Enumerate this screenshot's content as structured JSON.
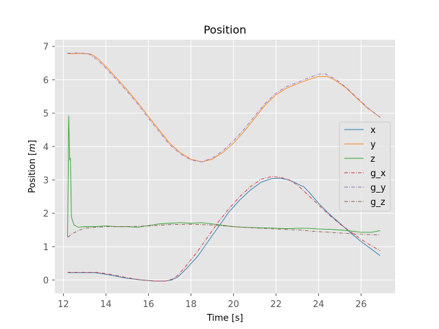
{
  "chart_data": {
    "type": "line",
    "title": "Position",
    "xlabel": "Time [s]",
    "ylabel": "Position [m]",
    "ylabel_prefix": "Position [",
    "ylabel_unit": "m",
    "ylabel_suffix": "]",
    "xlim": [
      11.6,
      27.6
    ],
    "ylim": [
      -0.4,
      7.2
    ],
    "xticks": [
      12,
      14,
      16,
      18,
      20,
      22,
      24,
      26
    ],
    "yticks": [
      0,
      1,
      2,
      3,
      4,
      5,
      6,
      7
    ],
    "grid": true,
    "style": "ggplot",
    "background": "#e5e5e5",
    "legend_position": "right",
    "series": [
      {
        "name": "x",
        "color": "#1f77b4",
        "linestyle": "solid",
        "points": [
          [
            12.2,
            0.22
          ],
          [
            12.8,
            0.22
          ],
          [
            13.5,
            0.22
          ],
          [
            14.2,
            0.15
          ],
          [
            15.0,
            0.05
          ],
          [
            15.7,
            0.0
          ],
          [
            16.3,
            -0.03
          ],
          [
            16.8,
            -0.03
          ],
          [
            17.1,
            0.0
          ],
          [
            17.4,
            0.1
          ],
          [
            17.8,
            0.35
          ],
          [
            18.3,
            0.7
          ],
          [
            18.8,
            1.15
          ],
          [
            19.3,
            1.6
          ],
          [
            19.8,
            2.05
          ],
          [
            20.3,
            2.4
          ],
          [
            20.8,
            2.7
          ],
          [
            21.3,
            2.93
          ],
          [
            21.8,
            3.04
          ],
          [
            22.2,
            3.05
          ],
          [
            22.6,
            3.0
          ],
          [
            22.9,
            2.92
          ],
          [
            23.1,
            2.85
          ],
          [
            23.2,
            2.82
          ],
          [
            23.3,
            2.8
          ],
          [
            23.6,
            2.6
          ],
          [
            24.0,
            2.3
          ],
          [
            24.5,
            1.98
          ],
          [
            25.0,
            1.7
          ],
          [
            25.5,
            1.42
          ],
          [
            26.0,
            1.15
          ],
          [
            26.5,
            0.92
          ],
          [
            26.9,
            0.73
          ]
        ]
      },
      {
        "name": "y",
        "color": "#ff7f0e",
        "linestyle": "solid",
        "points": [
          [
            12.2,
            6.78
          ],
          [
            12.8,
            6.79
          ],
          [
            13.3,
            6.77
          ],
          [
            13.6,
            6.65
          ],
          [
            14.0,
            6.4
          ],
          [
            14.5,
            6.05
          ],
          [
            15.0,
            5.7
          ],
          [
            15.5,
            5.32
          ],
          [
            16.0,
            4.9
          ],
          [
            16.5,
            4.5
          ],
          [
            17.0,
            4.1
          ],
          [
            17.5,
            3.82
          ],
          [
            18.0,
            3.62
          ],
          [
            18.5,
            3.54
          ],
          [
            19.0,
            3.62
          ],
          [
            19.5,
            3.82
          ],
          [
            20.0,
            4.1
          ],
          [
            20.5,
            4.45
          ],
          [
            21.0,
            4.85
          ],
          [
            21.5,
            5.25
          ],
          [
            22.0,
            5.55
          ],
          [
            22.5,
            5.75
          ],
          [
            23.0,
            5.88
          ],
          [
            23.5,
            6.0
          ],
          [
            24.0,
            6.1
          ],
          [
            24.4,
            6.1
          ],
          [
            24.8,
            5.98
          ],
          [
            25.3,
            5.75
          ],
          [
            25.8,
            5.45
          ],
          [
            26.3,
            5.15
          ],
          [
            26.9,
            4.88
          ]
        ]
      },
      {
        "name": "z",
        "color": "#2ca02c",
        "linestyle": "solid",
        "points": [
          [
            12.2,
            1.3
          ],
          [
            12.25,
            4.92
          ],
          [
            12.3,
            3.6
          ],
          [
            12.33,
            3.65
          ],
          [
            12.38,
            1.9
          ],
          [
            12.42,
            1.8
          ],
          [
            12.5,
            1.65
          ],
          [
            12.7,
            1.58
          ],
          [
            13.0,
            1.6
          ],
          [
            13.5,
            1.6
          ],
          [
            14.0,
            1.62
          ],
          [
            14.5,
            1.6
          ],
          [
            15.0,
            1.6
          ],
          [
            15.5,
            1.58
          ],
          [
            16.0,
            1.63
          ],
          [
            16.5,
            1.68
          ],
          [
            17.0,
            1.7
          ],
          [
            17.5,
            1.72
          ],
          [
            18.0,
            1.7
          ],
          [
            18.5,
            1.72
          ],
          [
            19.0,
            1.68
          ],
          [
            19.5,
            1.64
          ],
          [
            20.0,
            1.6
          ],
          [
            20.5,
            1.58
          ],
          [
            21.0,
            1.57
          ],
          [
            21.5,
            1.56
          ],
          [
            22.0,
            1.55
          ],
          [
            22.5,
            1.54
          ],
          [
            23.0,
            1.55
          ],
          [
            23.5,
            1.55
          ],
          [
            24.0,
            1.53
          ],
          [
            24.5,
            1.52
          ],
          [
            25.0,
            1.5
          ],
          [
            25.5,
            1.47
          ],
          [
            26.0,
            1.43
          ],
          [
            26.5,
            1.43
          ],
          [
            26.9,
            1.48
          ]
        ]
      },
      {
        "name": "g_x",
        "color": "#d62728",
        "linestyle": "dashdot",
        "points": [
          [
            12.2,
            0.23
          ],
          [
            13.0,
            0.23
          ],
          [
            13.6,
            0.23
          ],
          [
            14.2,
            0.17
          ],
          [
            15.0,
            0.07
          ],
          [
            15.7,
            0.0
          ],
          [
            16.3,
            -0.03
          ],
          [
            16.8,
            -0.03
          ],
          [
            17.1,
            0.02
          ],
          [
            17.4,
            0.15
          ],
          [
            17.8,
            0.45
          ],
          [
            18.3,
            0.85
          ],
          [
            18.8,
            1.3
          ],
          [
            19.3,
            1.75
          ],
          [
            19.8,
            2.15
          ],
          [
            20.3,
            2.5
          ],
          [
            20.8,
            2.8
          ],
          [
            21.3,
            3.02
          ],
          [
            21.8,
            3.1
          ],
          [
            22.2,
            3.08
          ],
          [
            22.6,
            3.0
          ],
          [
            23.0,
            2.85
          ],
          [
            23.5,
            2.55
          ],
          [
            24.0,
            2.25
          ],
          [
            24.5,
            1.95
          ],
          [
            25.0,
            1.68
          ],
          [
            25.5,
            1.45
          ],
          [
            26.0,
            1.22
          ],
          [
            26.5,
            1.02
          ],
          [
            26.9,
            0.88
          ]
        ]
      },
      {
        "name": "g_y",
        "color": "#9467bd",
        "linestyle": "dashdot",
        "points": [
          [
            12.2,
            6.8
          ],
          [
            12.8,
            6.8
          ],
          [
            13.2,
            6.78
          ],
          [
            13.6,
            6.6
          ],
          [
            14.0,
            6.35
          ],
          [
            14.5,
            6.0
          ],
          [
            15.0,
            5.65
          ],
          [
            15.5,
            5.27
          ],
          [
            16.0,
            4.85
          ],
          [
            16.5,
            4.45
          ],
          [
            17.0,
            4.05
          ],
          [
            17.5,
            3.78
          ],
          [
            18.0,
            3.6
          ],
          [
            18.5,
            3.54
          ],
          [
            19.0,
            3.65
          ],
          [
            19.5,
            3.87
          ],
          [
            20.0,
            4.17
          ],
          [
            20.5,
            4.52
          ],
          [
            21.0,
            4.92
          ],
          [
            21.5,
            5.3
          ],
          [
            22.0,
            5.6
          ],
          [
            22.5,
            5.8
          ],
          [
            23.0,
            5.92
          ],
          [
            23.5,
            6.05
          ],
          [
            24.0,
            6.17
          ],
          [
            24.3,
            6.18
          ],
          [
            24.8,
            6.02
          ],
          [
            25.3,
            5.77
          ],
          [
            25.8,
            5.47
          ],
          [
            26.3,
            5.17
          ],
          [
            26.9,
            4.87
          ]
        ]
      },
      {
        "name": "g_z",
        "color": "#8c564b",
        "linestyle": "dashdot",
        "points": [
          [
            12.2,
            1.28
          ],
          [
            12.4,
            1.38
          ],
          [
            12.7,
            1.48
          ],
          [
            13.0,
            1.55
          ],
          [
            13.5,
            1.58
          ],
          [
            14.0,
            1.6
          ],
          [
            15.0,
            1.6
          ],
          [
            16.0,
            1.62
          ],
          [
            17.0,
            1.66
          ],
          [
            18.0,
            1.67
          ],
          [
            19.0,
            1.65
          ],
          [
            20.0,
            1.6
          ],
          [
            21.0,
            1.56
          ],
          [
            22.0,
            1.53
          ],
          [
            23.0,
            1.5
          ],
          [
            24.0,
            1.45
          ],
          [
            25.0,
            1.41
          ],
          [
            26.0,
            1.37
          ],
          [
            26.9,
            1.35
          ]
        ]
      }
    ]
  }
}
